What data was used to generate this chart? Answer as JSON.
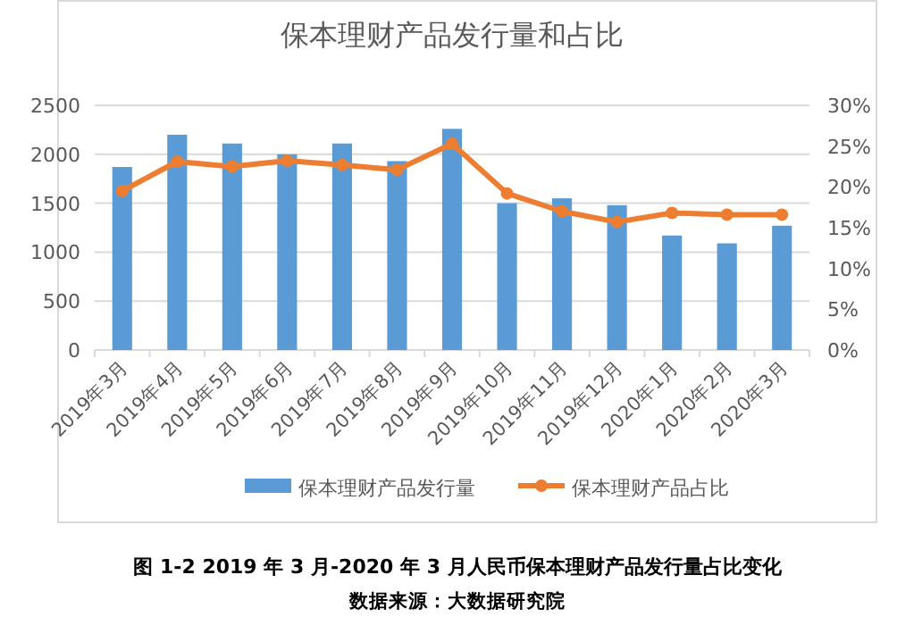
{
  "chart_data": {
    "type": "bar",
    "title": "保本理财产品发行量和占比",
    "categories": [
      "2019年3月",
      "2019年4月",
      "2019年5月",
      "2019年6月",
      "2019年7月",
      "2019年8月",
      "2019年9月",
      "2019年10月",
      "2019年11月",
      "2019年12月",
      "2020年1月",
      "2020年2月",
      "2020年3月"
    ],
    "series": [
      {
        "name": "保本理财产品发行量",
        "color": "#5b9bd5",
        "values": [
          1870,
          2200,
          2110,
          2000,
          2110,
          1930,
          2260,
          1500,
          1550,
          1480,
          1170,
          1090,
          1270
        ]
      },
      {
        "name": "保本理财产品占比",
        "type": "line",
        "axis": "y2",
        "color": "#ed7d31",
        "marker": "circle",
        "values": [
          19.5,
          23.1,
          22.5,
          23.2,
          22.7,
          22.1,
          25.3,
          19.2,
          17.0,
          15.7,
          16.8,
          16.6,
          16.6
        ]
      }
    ],
    "ylim": [
      0,
      2500
    ],
    "yticks": [
      0,
      500,
      1000,
      1500,
      2000,
      2500
    ],
    "y2lim": [
      0,
      30
    ],
    "y2ticks": [
      {
        "value": 0,
        "label": "0%"
      },
      {
        "value": 5,
        "label": "5%"
      },
      {
        "value": 10,
        "label": "10%"
      },
      {
        "value": 15,
        "label": "15%"
      },
      {
        "value": 20,
        "label": "20%"
      },
      {
        "value": 25,
        "label": "25%"
      },
      {
        "value": 30,
        "label": "30%"
      }
    ],
    "grid": "y",
    "legend": "bottom",
    "annotations": [
      "图 1-2 2019 年 3 月-2020 年 3 月人民币保本理财产品发行量占比变化",
      "数据来源：大数据研究院"
    ]
  }
}
